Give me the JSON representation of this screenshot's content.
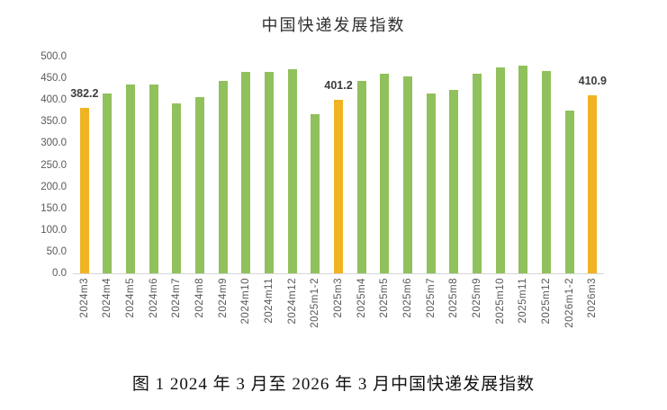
{
  "chart_data": {
    "type": "bar",
    "title": "中国快递发展指数",
    "caption": "图 1  2024 年 3 月至 2026 年 3 月中国快递发展指数",
    "categories": [
      "2024m3",
      "2024m4",
      "2024m5",
      "2024m6",
      "2024m7",
      "2024m8",
      "2024m9",
      "2024m10",
      "2024m11",
      "2024m12",
      "2025m1-2",
      "2025m3",
      "2025m4",
      "2025m5",
      "2025m6",
      "2025m7",
      "2025m8",
      "2025m9",
      "2025m10",
      "2025m11",
      "2025m12",
      "2026m1-2",
      "2026m3"
    ],
    "values": [
      382.2,
      415,
      435,
      436,
      393,
      407,
      444,
      465,
      465,
      471,
      367,
      401.2,
      443,
      460,
      455,
      414,
      424,
      460,
      476,
      480,
      467,
      375,
      410.9
    ],
    "highlight_indices": [
      0,
      11,
      22
    ],
    "data_labels": [
      {
        "index": 0,
        "text": "382.2"
      },
      {
        "index": 11,
        "text": "401.2"
      },
      {
        "index": 22,
        "text": "410.9"
      }
    ],
    "bar_color": "#90C15C",
    "highlight_color": "#F0B323",
    "ylim": [
      0,
      500
    ],
    "ytick_step": 50,
    "ytick_labels": [
      "0.0",
      "50.0",
      "100.0",
      "150.0",
      "200.0",
      "250.0",
      "300.0",
      "350.0",
      "400.0",
      "450.0",
      "500.0"
    ],
    "xlabel": "",
    "ylabel": "",
    "grid": false,
    "legend": "none"
  }
}
